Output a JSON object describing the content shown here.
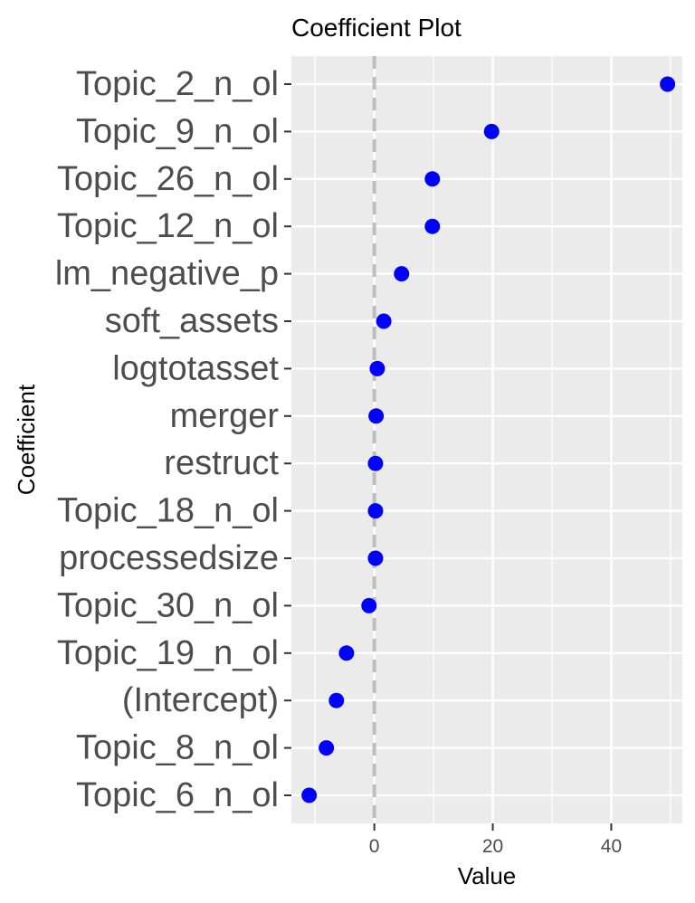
{
  "chart_data": {
    "type": "scatter",
    "title": "Coefficient Plot",
    "xlabel": "Value",
    "ylabel": "Coefficient",
    "xlim": [
      -14,
      52
    ],
    "xticks": [
      0,
      20,
      40
    ],
    "reference_line": 0,
    "grid": true,
    "categories": [
      "Topic_2_n_ol",
      "Topic_9_n_ol",
      "Topic_26_n_ol",
      "Topic_12_n_ol",
      "lm_negative_p",
      "soft_assets",
      "logtotasset",
      "merger",
      "restruct",
      "Topic_18_n_ol",
      "processedsize",
      "Topic_30_n_ol",
      "Topic_19_n_ol",
      "(Intercept)",
      "Topic_8_n_ol",
      "Topic_6_n_ol"
    ],
    "values": [
      49.5,
      19.8,
      9.8,
      9.8,
      4.6,
      1.6,
      0.5,
      0.3,
      0.2,
      0.2,
      0.2,
      -0.9,
      -4.7,
      -6.4,
      -8.1,
      -11.0
    ]
  },
  "colors": {
    "point": "#0000ff",
    "panel": "#ebebeb",
    "grid": "#ffffff",
    "reference_line": "#bdbdbd"
  }
}
